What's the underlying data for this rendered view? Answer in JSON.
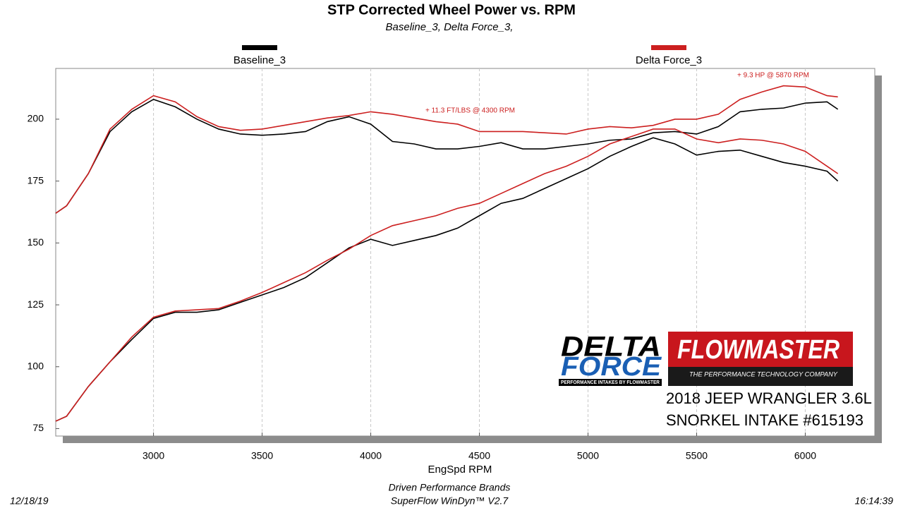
{
  "chart_data": {
    "type": "line",
    "title": "STP Corrected Wheel Power vs. RPM",
    "subtitle": "Baseline_3, Delta Force_3,",
    "x_label": "EngSpd  RPM",
    "xlim": [
      2550,
      6320
    ],
    "ylim": [
      72,
      220.5
    ],
    "xticks": [
      3000,
      3500,
      4000,
      4500,
      5000,
      5500,
      6000
    ],
    "yticks": [
      75,
      100,
      125,
      150,
      175,
      200
    ],
    "grid": true,
    "x": [
      2550,
      2600,
      2700,
      2800,
      2900,
      3000,
      3100,
      3200,
      3300,
      3400,
      3500,
      3600,
      3700,
      3800,
      3900,
      4000,
      4100,
      4200,
      4300,
      4400,
      4500,
      4600,
      4700,
      4800,
      4900,
      5000,
      5100,
      5200,
      5300,
      5400,
      5500,
      5600,
      5700,
      5800,
      5900,
      6000,
      6100,
      6150
    ],
    "series": [
      {
        "name": "Baseline_3",
        "color": "#000000",
        "values": [
          162,
          165,
          178,
          195,
          203,
          208,
          205,
          200,
          196,
          194,
          193.5,
          194,
          195,
          199,
          201,
          198,
          191,
          190,
          188,
          188,
          189,
          190.5,
          188,
          188,
          189,
          190,
          191.5,
          192,
          194.5,
          195,
          194,
          197,
          203,
          204,
          204.5,
          206.5,
          207,
          204
        ]
      },
      {
        "name": "Delta Force_3",
        "color": "#cc1f1f",
        "values": [
          162,
          165,
          178,
          196,
          204,
          209.5,
          207,
          201,
          197,
          195.5,
          196,
          197.5,
          199,
          200.5,
          201.5,
          203,
          202,
          200.5,
          199,
          198,
          195,
          195,
          195,
          194.5,
          194,
          196,
          197,
          196.5,
          197.5,
          200,
          200,
          202,
          208,
          211,
          213.5,
          213,
          209.5,
          209
        ]
      },
      {
        "color": "#000000",
        "values": [
          78,
          80,
          92,
          102,
          111,
          119.5,
          122,
          122,
          123,
          126,
          129,
          132,
          136,
          142,
          148,
          151.5,
          149,
          151,
          153,
          156,
          161,
          166,
          168,
          172,
          176,
          180,
          185,
          189,
          192.5,
          190,
          185.5,
          187,
          187.5,
          185,
          182.5,
          181,
          179,
          175
        ]
      },
      {
        "color": "#cc1f1f",
        "values": [
          78,
          80,
          92,
          102,
          112,
          120,
          122.5,
          123,
          123.5,
          126.5,
          130,
          134,
          138,
          143,
          147.5,
          153,
          157,
          159,
          161,
          164,
          166,
          170,
          174,
          178,
          181,
          185,
          190,
          193,
          196,
          196,
          192,
          190.5,
          192,
          191.5,
          190,
          187,
          181,
          178
        ]
      }
    ],
    "annotations": [
      "+ 11.3 FT/LBS @ 4300 RPM",
      "+ 9.3 HP @ 5870 RPM"
    ]
  },
  "logos": {
    "delta_1": "DELTA",
    "delta_2": "FORCE",
    "delta_tag": "PERFORMANCE INTAKES BY FLOWMASTER",
    "flowmaster": "FLOWMASTER",
    "flowmaster_tag": "THE PERFORMANCE TECHNOLOGY COMPANY"
  },
  "caption": [
    "2018 JEEP WRANGLER 3.6L",
    "SNORKEL INTAKE #615193"
  ],
  "footer": {
    "date": "12/18/19",
    "company": "Driven Performance Brands",
    "software": "SuperFlow WinDyn™  V2.7",
    "time": "16:14:39"
  }
}
